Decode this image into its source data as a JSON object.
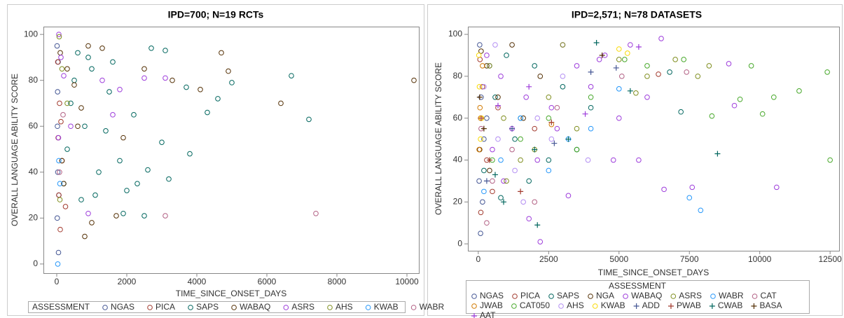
{
  "chart_data": [
    {
      "type": "scatter",
      "title": "IPD=700; N=19 RCTs",
      "x_label": "TIME_SINCE_ONSET_DAYS",
      "y_label": "OVERALL LANGUAGE ABILITY SCORE",
      "legend_title": "ASSESSMENT",
      "xlim": [
        -380,
        10340
      ],
      "ylim": [
        -4,
        103.4
      ],
      "xticks": [
        0,
        2000,
        4000,
        6000,
        8000,
        10000
      ],
      "yticks": [
        0,
        20,
        40,
        60,
        80,
        100
      ],
      "series": [
        {
          "name": "NGAS",
          "color": "#445694",
          "marker": "circle",
          "x": [
            10,
            20,
            30,
            15,
            50,
            25,
            60,
            40
          ],
          "values": [
            95,
            60,
            40,
            20,
            5,
            75,
            30,
            88
          ]
        },
        {
          "name": "PICA",
          "color": "#A23A2E",
          "marker": "circle",
          "x": [
            30,
            80,
            150,
            60,
            250,
            100,
            40,
            120
          ],
          "values": [
            88,
            70,
            45,
            30,
            25,
            15,
            55,
            62
          ]
        },
        {
          "name": "SAPS",
          "color": "#01665E",
          "marker": "circle",
          "x": [
            200,
            400,
            600,
            800,
            1000,
            1200,
            1500,
            1800,
            2000,
            2200,
            2500,
            2700,
            3000,
            3200,
            3800,
            4300,
            4600,
            5000,
            6700,
            7200,
            500,
            900,
            1400,
            1900,
            2600,
            3100,
            3700,
            1100,
            700,
            300,
            1600,
            2300
          ],
          "values": [
            35,
            70,
            92,
            60,
            85,
            40,
            75,
            45,
            32,
            65,
            21,
            94,
            53,
            37,
            48,
            66,
            72,
            79,
            82,
            63,
            80,
            90,
            58,
            22,
            41,
            93,
            77,
            30,
            28,
            50,
            88,
            35
          ]
        },
        {
          "name": "WABAQ",
          "color": "#543005",
          "marker": "circle",
          "x": [
            100,
            300,
            500,
            700,
            900,
            1300,
            1700,
            1900,
            2500,
            3300,
            4100,
            4700,
            4900,
            6400,
            10200,
            800,
            150,
            1000,
            200,
            600
          ],
          "values": [
            92,
            85,
            78,
            68,
            95,
            94,
            21,
            55,
            85,
            80,
            76,
            92,
            84,
            70,
            80,
            12,
            45,
            18,
            35,
            60
          ]
        },
        {
          "name": "ASRS",
          "color": "#9D3CDB",
          "marker": "circle",
          "x": [
            60,
            120,
            200,
            400,
            1300,
            1600,
            1800,
            2500,
            3100,
            50,
            900
          ],
          "values": [
            100,
            90,
            82,
            60,
            80,
            65,
            76,
            81,
            81,
            55,
            22
          ]
        },
        {
          "name": "AHS",
          "color": "#7F8E1F",
          "marker": "circle",
          "x": [
            70,
            150,
            300,
            90
          ],
          "values": [
            99,
            85,
            70,
            28
          ]
        },
        {
          "name": "KWAB",
          "color": "#2597FA",
          "marker": "circle",
          "x": [
            30,
            60,
            90
          ],
          "values": [
            0,
            45,
            35
          ]
        },
        {
          "name": "WABR",
          "color": "#B26084",
          "marker": "circle",
          "x": [
            7400,
            3100,
            80,
            180
          ],
          "values": [
            22,
            21,
            40,
            65
          ]
        }
      ]
    },
    {
      "type": "scatter",
      "title": "IPD=2,571; N=78 DATASETS",
      "x_label": "TIME_SINCE_ONSET_DAYS",
      "y_label": "OVERALL LANGUAGE ABILITY SCORE",
      "legend_title": "ASSESSMENT",
      "xlim": [
        -370,
        12820
      ],
      "ylim": [
        -3.3,
        103.7
      ],
      "xticks": [
        0,
        2500,
        5000,
        7500,
        10000,
        12500
      ],
      "yticks": [
        0,
        20,
        40,
        60,
        80,
        100
      ],
      "series": [
        {
          "name": "NGAS",
          "color": "#445694",
          "marker": "circle",
          "x": [
            50,
            100,
            200,
            30,
            400,
            150,
            80,
            300
          ],
          "values": [
            95,
            70,
            50,
            30,
            85,
            20,
            5,
            60
          ]
        },
        {
          "name": "PICA",
          "color": "#A23A2E",
          "marker": "circle",
          "x": [
            60,
            150,
            300,
            500,
            700,
            90,
            2000,
            6400
          ],
          "values": [
            88,
            75,
            40,
            25,
            65,
            15,
            55,
            81
          ]
        },
        {
          "name": "SAPS",
          "color": "#01665E",
          "marker": "circle",
          "x": [
            200,
            600,
            1000,
            1500,
            2000,
            2500,
            3000,
            3500,
            4000,
            7200,
            800,
            1300,
            1800,
            6800
          ],
          "values": [
            35,
            70,
            90,
            60,
            85,
            40,
            75,
            45,
            65,
            63,
            22,
            50,
            30,
            82
          ]
        },
        {
          "name": "NGA",
          "color": "#543005",
          "marker": "circle",
          "x": [
            100,
            300,
            700,
            1200,
            1600,
            2200,
            50,
            400
          ],
          "values": [
            92,
            85,
            70,
            95,
            60,
            80,
            45,
            35
          ]
        },
        {
          "name": "WABAQ",
          "color": "#9D3CDB",
          "marker": "circle",
          "x": [
            300,
            800,
            1200,
            1700,
            2100,
            2600,
            3000,
            3500,
            4000,
            4500,
            5000,
            5400,
            6000,
            6500,
            6600,
            7600,
            8900,
            9100,
            10600,
            2200,
            4800,
            3200,
            1800,
            900,
            5700,
            500,
            2800,
            4300
          ],
          "values": [
            90,
            80,
            55,
            70,
            40,
            65,
            95,
            85,
            75,
            90,
            60,
            95,
            70,
            98,
            26,
            27,
            86,
            66,
            27,
            1,
            40,
            23,
            12,
            30,
            40,
            45,
            55,
            88
          ]
        },
        {
          "name": "ASRS",
          "color": "#7F8E1F",
          "marker": "circle",
          "x": [
            400,
            900,
            1500,
            2500,
            3500,
            5000,
            5600,
            6000,
            7000,
            7800,
            8200,
            2000,
            1000,
            3000
          ],
          "values": [
            85,
            60,
            40,
            70,
            55,
            88,
            72,
            80,
            88,
            80,
            85,
            45,
            30,
            95
          ]
        },
        {
          "name": "WABR",
          "color": "#2597FA",
          "marker": "circle",
          "x": [
            200,
            800,
            1500,
            2500,
            4000,
            5000,
            7500,
            7900,
            3200
          ],
          "values": [
            25,
            40,
            60,
            35,
            55,
            74,
            22,
            16,
            50
          ]
        },
        {
          "name": "CAT",
          "color": "#B26084",
          "marker": "circle",
          "x": [
            100,
            500,
            1200,
            2800,
            5100,
            7400,
            2000,
            300
          ],
          "values": [
            55,
            30,
            45,
            65,
            80,
            82,
            20,
            10
          ]
        },
        {
          "name": "JWAB",
          "color": "#D17800",
          "marker": "circle",
          "x": [
            30,
            80,
            150,
            2600,
            60
          ],
          "values": [
            45,
            60,
            85,
            57,
            65
          ]
        },
        {
          "name": "CAT050",
          "color": "#47A82A",
          "marker": "circle",
          "x": [
            500,
            1500,
            2500,
            4000,
            6000,
            7300,
            8300,
            9700,
            10100,
            11400,
            12400,
            12500,
            9300,
            10500,
            3500,
            5200
          ],
          "values": [
            40,
            50,
            60,
            70,
            85,
            88,
            61,
            85,
            62,
            73,
            82,
            40,
            69,
            70,
            45,
            88
          ]
        },
        {
          "name": "AHS",
          "color": "#B38EF3",
          "marker": "circle",
          "x": [
            200,
            700,
            1300,
            2100,
            3000,
            3900,
            600,
            1600,
            2600
          ],
          "values": [
            75,
            50,
            35,
            60,
            80,
            40,
            95,
            20,
            50
          ]
        },
        {
          "name": "KWAB",
          "color": "#F9DA04",
          "marker": "circle",
          "x": [
            20,
            40,
            80,
            5000,
            5300,
            120
          ],
          "values": [
            90,
            75,
            50,
            93,
            91,
            60
          ]
        },
        {
          "name": "ADD",
          "color": "#445694",
          "marker": "plus",
          "x": [
            300,
            1200,
            2700,
            4000,
            4900
          ],
          "values": [
            30,
            55,
            48,
            82,
            84
          ]
        },
        {
          "name": "PWAB",
          "color": "#A23A2E",
          "marker": "plus",
          "x": [
            100,
            400,
            2600,
            1500
          ],
          "values": [
            60,
            40,
            58,
            25
          ]
        },
        {
          "name": "CWAB",
          "color": "#01665E",
          "marker": "plus",
          "x": [
            600,
            2000,
            3200,
            4200,
            5400,
            8500,
            2100,
            900
          ],
          "values": [
            33,
            45,
            50,
            96,
            73,
            43,
            9,
            20
          ]
        },
        {
          "name": "BASA",
          "color": "#543005",
          "marker": "plus",
          "x": [
            50,
            200,
            4400
          ],
          "values": [
            70,
            55,
            90
          ]
        },
        {
          "name": "AAT",
          "color": "#9D3CDB",
          "marker": "plus",
          "x": [
            700,
            1800,
            3800,
            5700
          ],
          "values": [
            66,
            75,
            62,
            94
          ]
        }
      ]
    }
  ]
}
